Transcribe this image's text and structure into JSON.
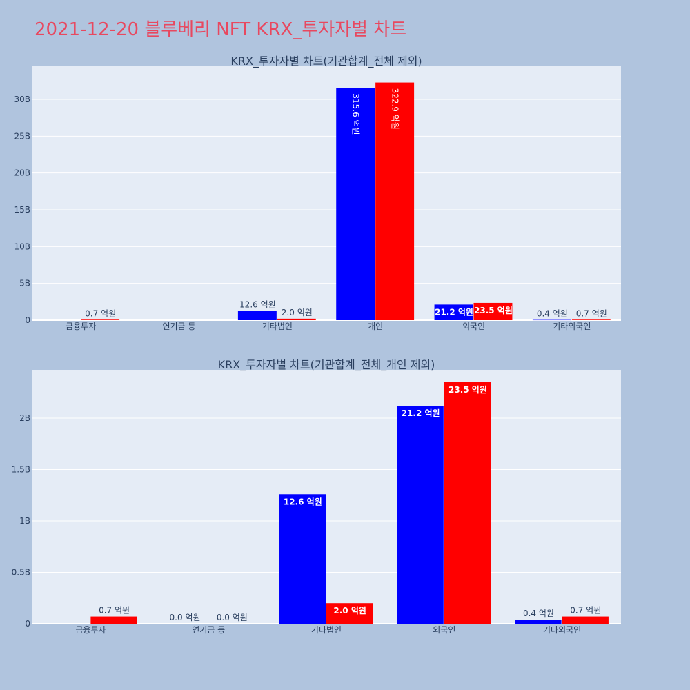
{
  "title": "2021-12-20 블루베리 NFT KRX_투자자별 차트",
  "colors": {
    "background": "#b0c4de",
    "plot_bg": "#e5ecf6",
    "title": "#e8485f",
    "series_a": "#0000ff",
    "series_b": "#ff0000"
  },
  "chart_data": [
    {
      "type": "bar",
      "title": "KRX_투자자별 차트(기관합계_전체 제외)",
      "categories": [
        "금융투자",
        "연기금 등",
        "기타법인",
        "개인",
        "외국인",
        "기타외국인"
      ],
      "series": [
        {
          "values": [
            0,
            0,
            1260000000,
            31560000000,
            2120000000,
            40000000
          ],
          "labels": [
            "",
            "",
            "12.6 억원",
            "315.6 억원",
            "21.2 억원",
            "0.4 억원"
          ]
        },
        {
          "values": [
            70000000,
            0,
            200000000,
            32290000000,
            2350000000,
            70000000
          ],
          "labels": [
            "0.7 억원",
            "",
            "2.0 억원",
            "322.9 억원",
            "23.5 억원",
            "0.7 억원"
          ]
        }
      ],
      "ylim": [
        0,
        34500000000
      ],
      "yticks": [
        0,
        5000000000,
        10000000000,
        15000000000,
        20000000000,
        25000000000,
        30000000000
      ],
      "ytick_labels": [
        "0",
        "5B",
        "10B",
        "15B",
        "20B",
        "25B",
        "30B"
      ],
      "grid": true
    },
    {
      "type": "bar",
      "title": "KRX_투자자별 차트(기관합계_전체_개인 제외)",
      "categories": [
        "금융투자",
        "연기금 등",
        "기타법인",
        "외국인",
        "기타외국인"
      ],
      "series": [
        {
          "values": [
            0,
            0,
            1260000000,
            2120000000,
            40000000
          ],
          "labels": [
            "",
            "0.0 억원",
            "12.6 억원",
            "21.2 억원",
            "0.4 억원"
          ]
        },
        {
          "values": [
            70000000,
            0,
            200000000,
            2350000000,
            70000000
          ],
          "labels": [
            "0.7 억원",
            "0.0 억원",
            "2.0 억원",
            "23.5 억원",
            "0.7 억원"
          ]
        }
      ],
      "ylim": [
        0,
        2470000000
      ],
      "yticks": [
        0,
        500000000,
        1000000000,
        1500000000,
        2000000000
      ],
      "ytick_labels": [
        "0",
        "0.5B",
        "1B",
        "1.5B",
        "2B"
      ],
      "grid": true
    }
  ]
}
